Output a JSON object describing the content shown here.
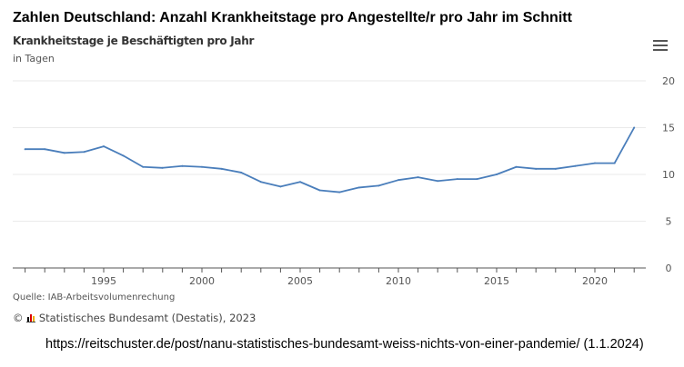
{
  "page_title": "Zahlen Deutschland: Anzahl Krankheitstage pro Angestellte/r pro Jahr im Schnitt",
  "source": "Quelle: IAB-Arbeitsvolumenrechung",
  "copyright": "Statistisches Bundesamt (Destatis), 2023",
  "copyright_symbol": "©",
  "url_caption": "https://reitschuster.de/post/nanu-statistisches-bundesamt-weiss-nichts-von-einer-pandemie/ (1.1.2024)",
  "menu_icon": "hamburger-menu-icon",
  "chart_data": {
    "type": "line",
    "title": "Krankheitstage je Beschäftigten pro Jahr",
    "subtitle": "in Tagen",
    "xlabel": "",
    "ylabel": "",
    "x": [
      1991,
      1992,
      1993,
      1994,
      1995,
      1996,
      1997,
      1998,
      1999,
      2000,
      2001,
      2002,
      2003,
      2004,
      2005,
      2006,
      2007,
      2008,
      2009,
      2010,
      2011,
      2012,
      2013,
      2014,
      2015,
      2016,
      2017,
      2018,
      2019,
      2020,
      2021,
      2022
    ],
    "values": [
      12.7,
      12.7,
      12.3,
      12.4,
      13.0,
      12.0,
      10.8,
      10.7,
      10.9,
      10.8,
      10.6,
      10.2,
      9.2,
      8.7,
      9.2,
      8.3,
      8.1,
      8.6,
      8.8,
      9.4,
      9.7,
      9.3,
      9.5,
      9.5,
      10.0,
      10.8,
      10.6,
      10.6,
      10.9,
      11.2,
      11.2,
      15.0
    ],
    "xticks": [
      "1995",
      "2000",
      "2005",
      "2010",
      "2015",
      "2020"
    ],
    "yticks": [
      "0",
      "5",
      "10",
      "15",
      "20"
    ],
    "ylim": [
      0,
      20
    ],
    "xlim": [
      1990.4,
      2022.6
    ],
    "grid": true,
    "line_color": "#4a7ebb",
    "y_axis_side": "right"
  }
}
